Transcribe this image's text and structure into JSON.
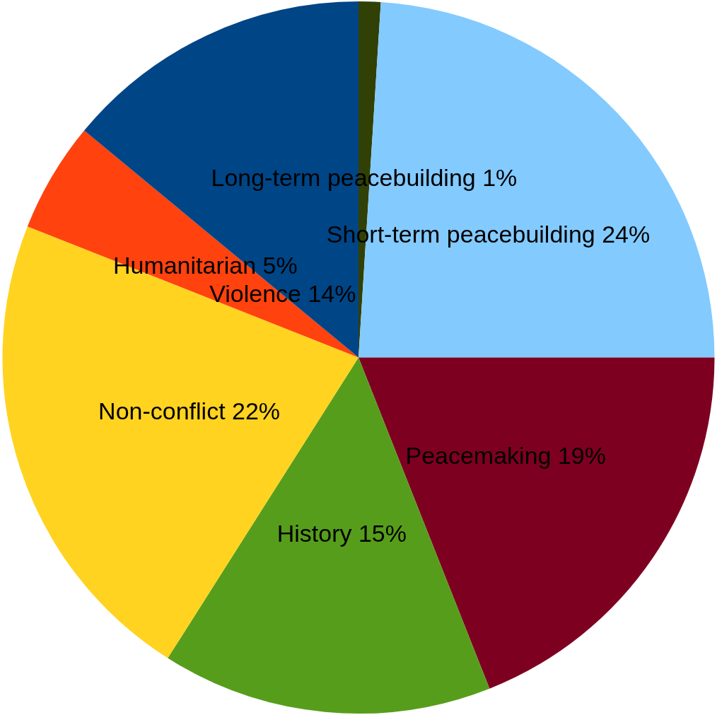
{
  "chart_data": {
    "type": "pie",
    "categories": [
      "Long-term peacebuilding",
      "Short-term peacebuilding",
      "Peacemaking",
      "History",
      "Non-conflict",
      "Humanitarian",
      "Violence"
    ],
    "values": [
      1,
      24,
      19,
      15,
      22,
      5,
      14
    ],
    "value_labels": [
      "1%",
      "24%",
      "19%",
      "15%",
      "22%",
      "5%",
      "14%"
    ],
    "colors": [
      "#314004",
      "#83caff",
      "#7e0021",
      "#579d1c",
      "#ffd320",
      "#ff420e",
      "#004586"
    ]
  }
}
